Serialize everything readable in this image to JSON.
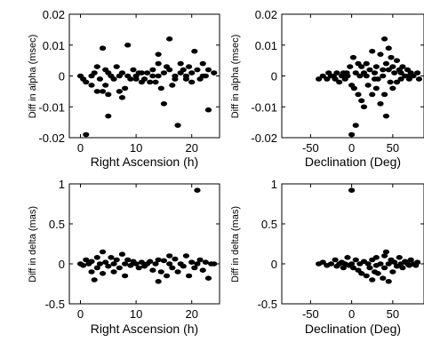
{
  "chart_data": [
    {
      "type": "scatter",
      "xlabel": "Right Ascension (h)",
      "ylabel": "Diff in alpha (msec)",
      "xlim": [
        -2,
        25
      ],
      "ylim": [
        -0.02,
        0.02
      ],
      "xticks": [
        "0",
        "10",
        "20"
      ],
      "yticks": [
        "0.02",
        "0.01",
        "0",
        "-0.01",
        "-0.02"
      ],
      "grid": false,
      "points": [
        [
          1,
          -0.019
        ],
        [
          1,
          -0.002
        ],
        [
          2,
          -0.003
        ],
        [
          2,
          0
        ],
        [
          2.5,
          0.001
        ],
        [
          3,
          0.003
        ],
        [
          3,
          -0.005
        ],
        [
          3.5,
          -0.001
        ],
        [
          4,
          0.009
        ],
        [
          4,
          -0.005
        ],
        [
          4.5,
          -0.003
        ],
        [
          4.5,
          0.002
        ],
        [
          5,
          -0.013
        ],
        [
          5,
          -0.006
        ],
        [
          5.5,
          0
        ],
        [
          6,
          -0.001
        ],
        [
          6.5,
          0.003
        ],
        [
          7,
          -0.005
        ],
        [
          7.5,
          -0.007
        ],
        [
          7.5,
          0.001
        ],
        [
          8,
          -0.004
        ],
        [
          8.5,
          0.01
        ],
        [
          8.5,
          0
        ],
        [
          9,
          -0.001
        ],
        [
          9.5,
          0.002
        ],
        [
          10,
          -0.001
        ],
        [
          10.5,
          0.001
        ],
        [
          11,
          -0.002
        ],
        [
          11,
          0.001
        ],
        [
          11.5,
          -0.001
        ],
        [
          12,
          0.001
        ],
        [
          12.5,
          -0.002
        ],
        [
          13,
          0.002
        ],
        [
          13,
          0
        ],
        [
          13.5,
          -0.002
        ],
        [
          14,
          0.007
        ],
        [
          14,
          0.004
        ],
        [
          14.5,
          -0.004
        ],
        [
          15,
          0.001
        ],
        [
          15,
          -0.009
        ],
        [
          15.5,
          0.003
        ],
        [
          16,
          0.012
        ],
        [
          16,
          0.002
        ],
        [
          16.5,
          -0.003
        ],
        [
          17,
          -0.001
        ],
        [
          17.5,
          -0.016
        ],
        [
          18,
          0.001
        ],
        [
          18,
          0.004
        ],
        [
          18.5,
          0.002
        ],
        [
          19,
          0
        ],
        [
          19.5,
          0.003
        ],
        [
          20,
          0.001
        ],
        [
          20,
          -0.002
        ],
        [
          20.5,
          0.008
        ],
        [
          21,
          0.002
        ],
        [
          21.5,
          -0.001
        ],
        [
          22,
          0.004
        ],
        [
          22.5,
          0
        ],
        [
          23,
          -0.011
        ],
        [
          23,
          0.002
        ],
        [
          24,
          0.001
        ],
        [
          0,
          0
        ],
        [
          0.5,
          -0.001
        ],
        [
          5,
          0.001
        ],
        [
          7,
          0
        ],
        [
          10,
          0
        ],
        [
          14,
          0
        ],
        [
          17,
          0
        ],
        [
          19,
          -0.001
        ],
        [
          22,
          0
        ]
      ]
    },
    {
      "type": "scatter",
      "xlabel": "Declination (Deg)",
      "ylabel": "Diff in alpha (msec)",
      "xlim": [
        -85,
        88
      ],
      "ylim": [
        -0.02,
        0.02
      ],
      "xticks": [
        "-50",
        "0",
        "50"
      ],
      "yticks": [
        "0.02",
        "0.01",
        "0",
        "-0.01",
        "-0.02"
      ],
      "grid": false,
      "points": [
        [
          -40,
          -0.001
        ],
        [
          -35,
          0
        ],
        [
          -30,
          -0.001
        ],
        [
          -28,
          0.001
        ],
        [
          -25,
          0
        ],
        [
          -20,
          -0.001
        ],
        [
          -18,
          0.001
        ],
        [
          -15,
          -0.002
        ],
        [
          -12,
          0
        ],
        [
          -10,
          0.001
        ],
        [
          -8,
          -0.001
        ],
        [
          -5,
          0
        ],
        [
          -2,
          0.003
        ],
        [
          0,
          -0.003
        ],
        [
          0,
          -0.019
        ],
        [
          2,
          0.006
        ],
        [
          3,
          -0.004
        ],
        [
          5,
          0.001
        ],
        [
          5,
          -0.016
        ],
        [
          8,
          0.004
        ],
        [
          8,
          -0.006
        ],
        [
          10,
          0
        ],
        [
          12,
          0.003
        ],
        [
          12,
          -0.008
        ],
        [
          15,
          0.001
        ],
        [
          15,
          -0.01
        ],
        [
          18,
          0.004
        ],
        [
          20,
          -0.003
        ],
        [
          22,
          0.002
        ],
        [
          25,
          -0.006
        ],
        [
          25,
          0.008
        ],
        [
          28,
          0.001
        ],
        [
          30,
          0.003
        ],
        [
          30,
          -0.004
        ],
        [
          32,
          -0.001
        ],
        [
          35,
          0.007
        ],
        [
          35,
          -0.009
        ],
        [
          38,
          0.002
        ],
        [
          40,
          0.012
        ],
        [
          40,
          -0.006
        ],
        [
          42,
          0.004
        ],
        [
          42,
          -0.013
        ],
        [
          45,
          0.009
        ],
        [
          45,
          0.002
        ],
        [
          47,
          -0.002
        ],
        [
          48,
          0.006
        ],
        [
          50,
          -0.004
        ],
        [
          50,
          0.003
        ],
        [
          52,
          0.001
        ],
        [
          55,
          0.005
        ],
        [
          55,
          -0.002
        ],
        [
          58,
          0.002
        ],
        [
          60,
          -0.001
        ],
        [
          62,
          0.003
        ],
        [
          65,
          0
        ],
        [
          68,
          0.002
        ],
        [
          70,
          -0.001
        ],
        [
          72,
          0.001
        ],
        [
          75,
          0
        ],
        [
          80,
          0.001
        ],
        [
          82,
          -0.001
        ],
        [
          -22,
          0
        ],
        [
          -6,
          0.001
        ],
        [
          18,
          0
        ],
        [
          28,
          -0.001
        ],
        [
          38,
          0
        ],
        [
          60,
          0.001
        ],
        [
          70,
          0
        ]
      ]
    },
    {
      "type": "scatter",
      "xlabel": "Right Ascension (h)",
      "ylabel": "Diff in delta (mas)",
      "xlim": [
        -2,
        25
      ],
      "ylim": [
        -0.5,
        1
      ],
      "xticks": [
        "0",
        "10",
        "20"
      ],
      "yticks": [
        "1",
        "0.5",
        "0",
        "-0.5"
      ],
      "grid": false,
      "points": [
        [
          0,
          0
        ],
        [
          0.5,
          -0.02
        ],
        [
          1,
          0.05
        ],
        [
          1.5,
          0
        ],
        [
          2,
          -0.1
        ],
        [
          2,
          0.03
        ],
        [
          2.5,
          -0.2
        ],
        [
          3,
          0.08
        ],
        [
          3,
          -0.05
        ],
        [
          3.5,
          0
        ],
        [
          4,
          0.15
        ],
        [
          4,
          -0.12
        ],
        [
          4.5,
          0.02
        ],
        [
          5,
          -0.03
        ],
        [
          5.5,
          0.08
        ],
        [
          6,
          0
        ],
        [
          6,
          -0.1
        ],
        [
          6.5,
          0.05
        ],
        [
          7,
          -0.05
        ],
        [
          7.5,
          0.12
        ],
        [
          8,
          0
        ],
        [
          8,
          -0.15
        ],
        [
          8.5,
          0.05
        ],
        [
          9,
          -0.02
        ],
        [
          9.5,
          0.03
        ],
        [
          10,
          0
        ],
        [
          10.5,
          -0.05
        ],
        [
          11,
          0.02
        ],
        [
          11.5,
          -0.03
        ],
        [
          12,
          0
        ],
        [
          12.5,
          0.03
        ],
        [
          13,
          -0.08
        ],
        [
          13.5,
          0
        ],
        [
          14,
          -0.22
        ],
        [
          14,
          0.05
        ],
        [
          14.5,
          -0.1
        ],
        [
          15,
          0.04
        ],
        [
          15.5,
          -0.15
        ],
        [
          16,
          0.1
        ],
        [
          16,
          0
        ],
        [
          16.5,
          -0.05
        ],
        [
          17,
          0.06
        ],
        [
          17.5,
          -0.1
        ],
        [
          18,
          0
        ],
        [
          18.5,
          -0.03
        ],
        [
          19,
          0.1
        ],
        [
          19.5,
          -0.15
        ],
        [
          20,
          0.02
        ],
        [
          20.5,
          -0.05
        ],
        [
          21,
          0.92
        ],
        [
          21,
          0
        ],
        [
          21.5,
          0.05
        ],
        [
          22,
          -0.08
        ],
        [
          22.5,
          0.02
        ],
        [
          23,
          -0.18
        ],
        [
          23.5,
          0
        ],
        [
          24,
          0
        ]
      ]
    },
    {
      "type": "scatter",
      "xlabel": "Declination (Deg)",
      "ylabel": "Diff in delta (mas)",
      "xlim": [
        -85,
        88
      ],
      "ylim": [
        -0.5,
        1
      ],
      "xticks": [
        "-50",
        "0",
        "50"
      ],
      "yticks": [
        "1",
        "0.5",
        "0",
        "-0.5"
      ],
      "grid": false,
      "points": [
        [
          -40,
          0
        ],
        [
          -35,
          0.02
        ],
        [
          -30,
          -0.02
        ],
        [
          -25,
          0
        ],
        [
          -20,
          0.05
        ],
        [
          -18,
          -0.03
        ],
        [
          -15,
          0
        ],
        [
          -12,
          0.02
        ],
        [
          -10,
          -0.05
        ],
        [
          -8,
          0
        ],
        [
          -5,
          0.08
        ],
        [
          -3,
          -0.02
        ],
        [
          0,
          0.92
        ],
        [
          0,
          0
        ],
        [
          2,
          -0.05
        ],
        [
          5,
          0.05
        ],
        [
          8,
          -0.08
        ],
        [
          10,
          0
        ],
        [
          12,
          -0.12
        ],
        [
          15,
          0.03
        ],
        [
          18,
          -0.15
        ],
        [
          20,
          0
        ],
        [
          22,
          -0.05
        ],
        [
          25,
          -0.2
        ],
        [
          25,
          0.05
        ],
        [
          28,
          -0.1
        ],
        [
          30,
          0.08
        ],
        [
          30,
          -0.02
        ],
        [
          32,
          -0.12
        ],
        [
          35,
          0
        ],
        [
          38,
          -0.18
        ],
        [
          40,
          0.1
        ],
        [
          40,
          -0.05
        ],
        [
          42,
          0.15
        ],
        [
          45,
          0
        ],
        [
          45,
          -0.22
        ],
        [
          48,
          0.05
        ],
        [
          50,
          -0.1
        ],
        [
          52,
          0.02
        ],
        [
          55,
          -0.03
        ],
        [
          58,
          0.08
        ],
        [
          60,
          0
        ],
        [
          62,
          -0.05
        ],
        [
          65,
          0.03
        ],
        [
          68,
          0
        ],
        [
          70,
          -0.02
        ],
        [
          72,
          0.05
        ],
        [
          75,
          0
        ],
        [
          78,
          -0.02
        ],
        [
          80,
          0.02
        ]
      ]
    }
  ]
}
